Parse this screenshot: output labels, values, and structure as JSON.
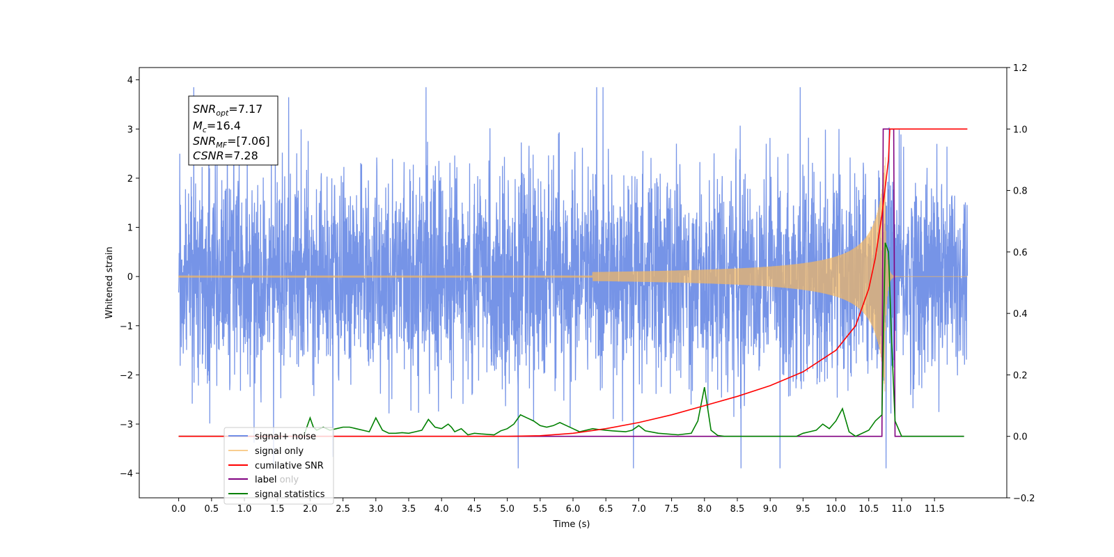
{
  "chart_data": {
    "type": "line",
    "xlabel": "Time (s)",
    "ylabel": "Whitened strain",
    "xlim": [
      -0.6,
      12.6
    ],
    "ylim": [
      -4.5,
      4.25
    ],
    "y2lim": [
      -0.2,
      1.2
    ],
    "x_ticks": [
      "0.0",
      "0.5",
      "1.0",
      "1.5",
      "2.0",
      "2.5",
      "3.0",
      "3.5",
      "4.0",
      "4.5",
      "5.0",
      "5.5",
      "6.0",
      "6.5",
      "7.0",
      "7.5",
      "8.0",
      "8.5",
      "9.0",
      "9.5",
      "10.0",
      "10.5",
      "11.0",
      "11.5"
    ],
    "y_ticks": [
      4,
      3,
      2,
      1,
      0,
      -1,
      -2,
      -3,
      -4
    ],
    "y2_ticks": [
      "1.2",
      "1.0",
      "0.8",
      "0.6",
      "0.4",
      "0.2",
      "0.0",
      "−0.2"
    ],
    "annotation": {
      "snr_opt": {
        "base": "SNR",
        "sub": "opt",
        "value": "=7.17"
      },
      "mc": {
        "base": "M",
        "sub": "c",
        "value": "=16.4"
      },
      "snr_mf": {
        "base": "SNR",
        "sub": "MF",
        "value": "=[7.06]"
      },
      "csnr": {
        "base": "CSNR",
        "value": "=7.28"
      }
    },
    "legend": [
      "signal+ noise",
      "signal only",
      "cumilative SNR",
      "label",
      "label only",
      "signal statistics"
    ],
    "legend_position": "lower left",
    "colors": {
      "signal_noise": "#6f8ee6",
      "signal_only": "#f5b860",
      "cumulative_snr": "#ff0000",
      "label": "#800080",
      "signal_statistics": "#008000"
    },
    "series": {
      "signal_noise": {
        "axis": "left",
        "x_range": [
          0.0,
          12.0
        ],
        "amplitude_range": [
          -3.9,
          3.85
        ]
      },
      "signal_only": {
        "axis": "left",
        "x_range": [
          0.0,
          12.0
        ],
        "peak_time": 10.75,
        "peak_amplitude": 1.3
      },
      "cumulative_snr": {
        "axis": "right",
        "x": [
          0.0,
          5.0,
          5.5,
          6.0,
          6.5,
          7.0,
          7.5,
          8.0,
          8.5,
          9.0,
          9.5,
          10.0,
          10.3,
          10.5,
          10.6,
          10.7,
          10.8,
          10.82,
          12.0
        ],
        "y": [
          0.0,
          0.0,
          0.002,
          0.01,
          0.025,
          0.045,
          0.07,
          0.1,
          0.13,
          0.165,
          0.21,
          0.28,
          0.36,
          0.48,
          0.58,
          0.72,
          0.9,
          1.0,
          1.0
        ]
      },
      "label": {
        "axis": "right",
        "x": [
          0.0,
          10.7,
          10.72,
          10.88,
          10.9,
          11.95
        ],
        "y": [
          0.0,
          0.0,
          1.0,
          1.0,
          0.0,
          0.0
        ]
      },
      "signal_statistics": {
        "axis": "right",
        "x": [
          0.0,
          1.9,
          2.0,
          2.05,
          2.1,
          2.2,
          2.3,
          2.4,
          2.5,
          2.6,
          2.7,
          2.8,
          2.9,
          3.0,
          3.1,
          3.2,
          3.3,
          3.4,
          3.5,
          3.6,
          3.7,
          3.8,
          3.9,
          4.0,
          4.1,
          4.15,
          4.2,
          4.3,
          4.4,
          4.5,
          4.6,
          4.8,
          4.9,
          5.0,
          5.1,
          5.2,
          5.3,
          5.4,
          5.5,
          5.6,
          5.7,
          5.8,
          5.9,
          6.0,
          6.1,
          6.2,
          6.3,
          6.4,
          6.5,
          6.6,
          6.8,
          6.9,
          7.0,
          7.1,
          7.3,
          7.6,
          7.8,
          7.9,
          8.0,
          8.05,
          8.1,
          8.2,
          8.3,
          8.5,
          9.0,
          9.4,
          9.5,
          9.6,
          9.7,
          9.8,
          9.9,
          10.0,
          10.1,
          10.2,
          10.3,
          10.5,
          10.6,
          10.7,
          10.75,
          10.8,
          10.85,
          10.9,
          11.0,
          11.95
        ],
        "y": [
          0.0,
          0.0,
          0.06,
          0.03,
          0.02,
          0.03,
          0.02,
          0.025,
          0.03,
          0.03,
          0.025,
          0.02,
          0.015,
          0.06,
          0.02,
          0.01,
          0.01,
          0.012,
          0.01,
          0.015,
          0.02,
          0.055,
          0.03,
          0.025,
          0.04,
          0.03,
          0.015,
          0.025,
          0.005,
          0.01,
          0.008,
          0.005,
          0.018,
          0.025,
          0.04,
          0.07,
          0.06,
          0.05,
          0.035,
          0.03,
          0.035,
          0.045,
          0.035,
          0.025,
          0.015,
          0.02,
          0.025,
          0.022,
          0.02,
          0.018,
          0.015,
          0.02,
          0.035,
          0.018,
          0.01,
          0.005,
          0.01,
          0.05,
          0.16,
          0.09,
          0.02,
          0.003,
          0.0,
          0.0,
          0.0,
          0.0,
          0.01,
          0.015,
          0.02,
          0.04,
          0.025,
          0.05,
          0.09,
          0.015,
          0.0,
          0.02,
          0.05,
          0.07,
          0.63,
          0.6,
          0.3,
          0.05,
          0.0,
          0.0
        ]
      }
    }
  }
}
